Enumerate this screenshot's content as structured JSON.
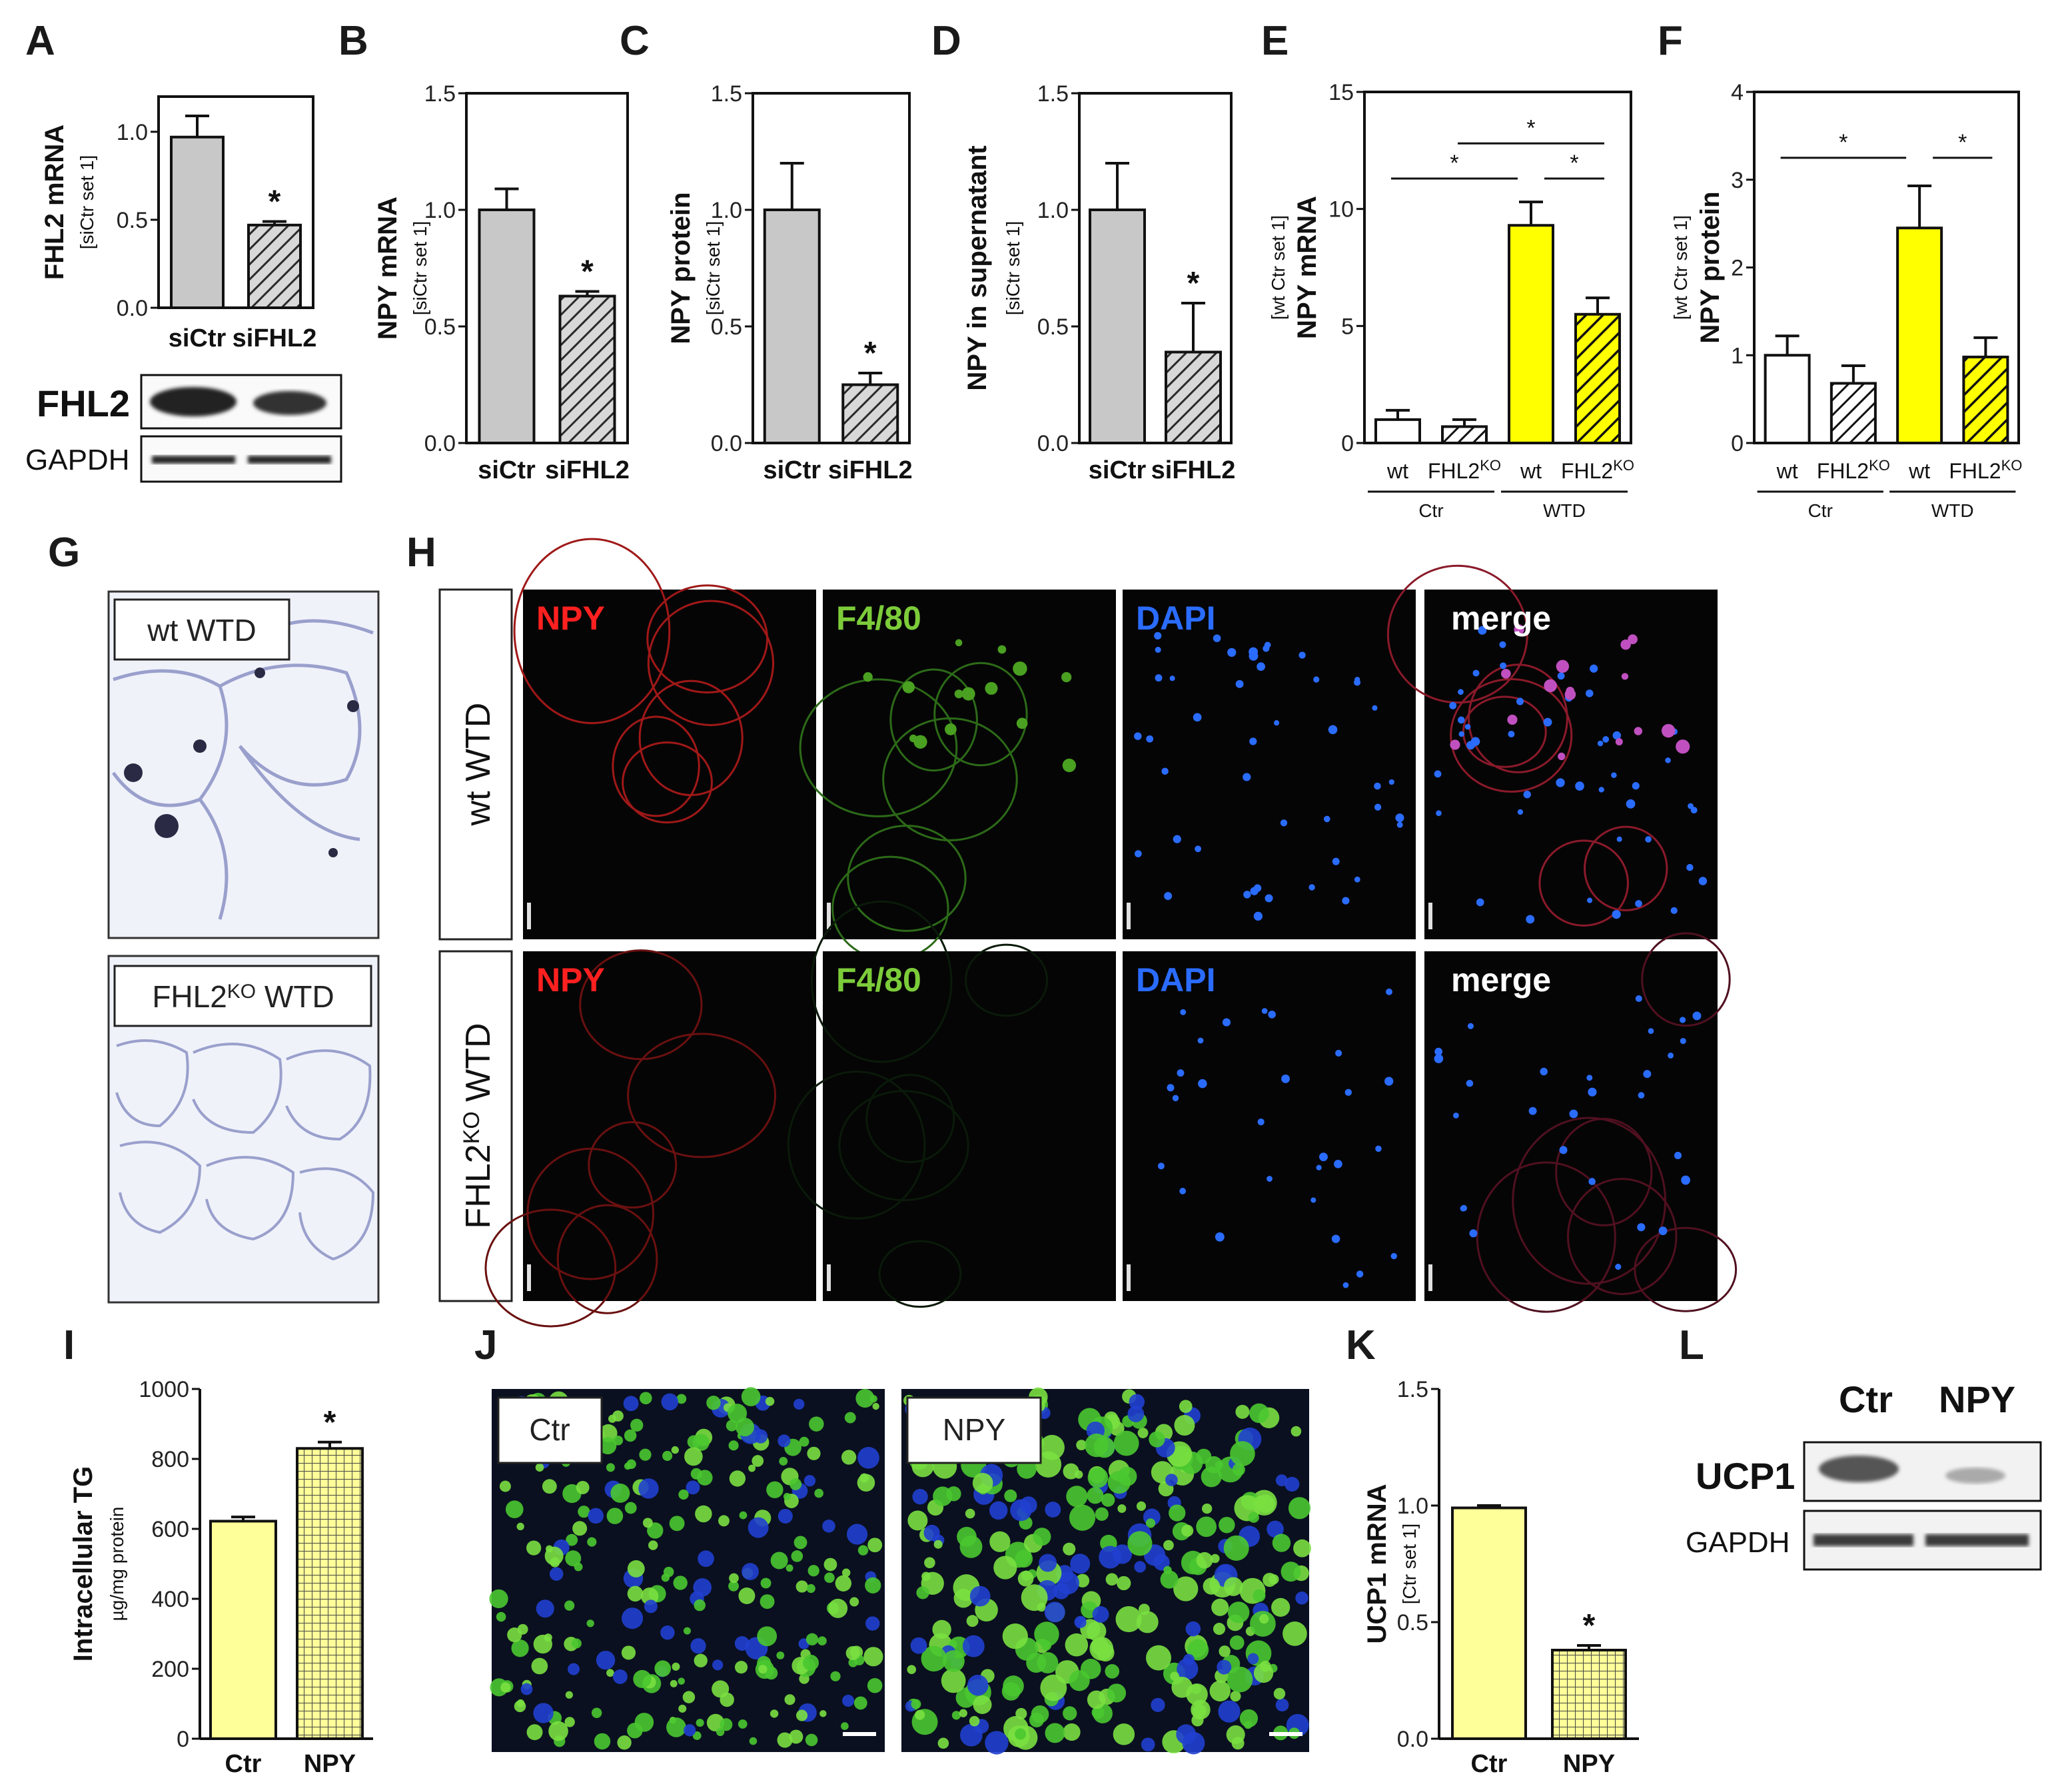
{
  "panel_letters": [
    "A",
    "B",
    "C",
    "D",
    "E",
    "F",
    "G",
    "H",
    "I",
    "J",
    "K",
    "L"
  ],
  "colors": {
    "gray_bar": "#c8c8c8",
    "yellow": "#ffff00",
    "light_yellow": "#ffff99",
    "white": "#ffffff",
    "npy_red": "#ff2020",
    "f480_green": "#7ccc3a",
    "dapi_blue": "#2a6cff",
    "merge_white": "#ffffff"
  },
  "chart_data": [
    {
      "panel": "A",
      "type": "bar",
      "ylabel": "FHL2 mRNA",
      "ysub": "[siCtr set 1]",
      "categories": [
        "siCtr",
        "siFHL2"
      ],
      "values": [
        0.97,
        0.47
      ],
      "errors": [
        0.12,
        0.02
      ],
      "patterns": [
        "solid",
        "hatch"
      ],
      "ylim": [
        0,
        1.2
      ],
      "yticks": [
        "0.0",
        "0.5",
        "1.0"
      ],
      "ytick_values": [
        0,
        0.5,
        1.0
      ],
      "sig": [
        {
          "label": "*",
          "bar": 1
        }
      ]
    },
    {
      "panel": "B",
      "type": "bar",
      "ylabel": "NPY mRNA",
      "ysub": "[siCtr set 1]",
      "categories": [
        "siCtr",
        "siFHL2"
      ],
      "values": [
        1.0,
        0.63
      ],
      "errors": [
        0.09,
        0.02
      ],
      "patterns": [
        "solid",
        "hatch"
      ],
      "ylim": [
        0,
        1.5
      ],
      "yticks": [
        "0.0",
        "0.5",
        "1.0",
        "1.5"
      ],
      "ytick_values": [
        0,
        0.5,
        1.0,
        1.5
      ],
      "sig": [
        {
          "label": "*",
          "bar": 1
        }
      ]
    },
    {
      "panel": "C",
      "type": "bar",
      "ylabel": "NPY protein",
      "ysub": "[siCtr set 1]",
      "categories": [
        "siCtr",
        "siFHL2"
      ],
      "values": [
        1.0,
        0.25
      ],
      "errors": [
        0.2,
        0.05
      ],
      "patterns": [
        "solid",
        "hatch"
      ],
      "ylim": [
        0,
        1.5
      ],
      "yticks": [
        "0.0",
        "0.5",
        "1.0",
        "1.5"
      ],
      "ytick_values": [
        0,
        0.5,
        1.0,
        1.5
      ],
      "sig": [
        {
          "label": "*",
          "bar": 1
        }
      ]
    },
    {
      "panel": "D",
      "type": "bar",
      "ylabel": "NPY in supernatant",
      "ysub": "[siCtr set 1]",
      "categories": [
        "siCtr",
        "siFHL2"
      ],
      "values": [
        1.0,
        0.39
      ],
      "errors": [
        0.2,
        0.21
      ],
      "patterns": [
        "solid",
        "hatch"
      ],
      "ylim": [
        0,
        1.5
      ],
      "yticks": [
        "0.0",
        "0.5",
        "1.0",
        "1.5"
      ],
      "ytick_values": [
        0,
        0.5,
        1.0,
        1.5
      ],
      "sig": [
        {
          "label": "*",
          "bar": 1
        }
      ]
    },
    {
      "panel": "E",
      "type": "bar",
      "ylabel": "NPY mRNA",
      "ysub": "[wt Ctr set 1]",
      "categories": [
        "wt",
        "FHL2",
        "wt",
        "FHL2"
      ],
      "values": [
        1.0,
        0.7,
        9.3,
        5.5
      ],
      "errors": [
        0.4,
        0.3,
        1.0,
        0.7
      ],
      "fills": [
        "white",
        "white",
        "yellow",
        "yellow"
      ],
      "patterns": [
        "solid",
        "hatch",
        "solid",
        "hatch"
      ],
      "groups": [
        "Ctr",
        "WTD"
      ],
      "ylim": [
        0,
        15
      ],
      "yticks": [
        "0",
        "5",
        "10",
        "15"
      ],
      "ytick_values": [
        0,
        5,
        10,
        15
      ],
      "brackets": [
        {
          "from": 0,
          "to": 2,
          "level": 11.3,
          "label": "*"
        },
        {
          "from": 2,
          "to": 3,
          "level": 11.3,
          "label": "*"
        },
        {
          "from": 1,
          "to": 3,
          "level": 12.8,
          "label": "*"
        }
      ]
    },
    {
      "panel": "F",
      "type": "bar",
      "ylabel": "NPY protein",
      "ysub": "[wt Ctr set 1]",
      "categories": [
        "wt",
        "FHL2",
        "wt",
        "FHL2"
      ],
      "values": [
        1.0,
        0.68,
        2.45,
        0.98
      ],
      "errors": [
        0.22,
        0.2,
        0.48,
        0.22
      ],
      "fills": [
        "white",
        "white",
        "yellow",
        "yellow"
      ],
      "patterns": [
        "solid",
        "hatch",
        "solid",
        "hatch"
      ],
      "groups": [
        "Ctr",
        "WTD"
      ],
      "ylim": [
        0,
        4
      ],
      "yticks": [
        "0",
        "1",
        "2",
        "3",
        "4"
      ],
      "ytick_values": [
        0,
        1,
        2,
        3,
        4
      ],
      "brackets": [
        {
          "from": 0,
          "to": 2,
          "level": 3.25,
          "label": "*"
        },
        {
          "from": 2,
          "to": 3,
          "level": 3.25,
          "label": "*"
        }
      ]
    },
    {
      "panel": "I",
      "type": "bar",
      "ylabel": "Intracellular TG",
      "ysub": "µg/mg protein",
      "categories": [
        "Ctr",
        "NPY"
      ],
      "values": [
        622,
        830
      ],
      "errors": [
        12,
        18
      ],
      "fills": [
        "light_yellow",
        "light_yellow"
      ],
      "patterns": [
        "solid",
        "grid"
      ],
      "ylim": [
        0,
        1000
      ],
      "yticks": [
        "0",
        "200",
        "400",
        "600",
        "800",
        "1000"
      ],
      "ytick_values": [
        0,
        200,
        400,
        600,
        800,
        1000
      ],
      "sig": [
        {
          "label": "*",
          "bar": 1
        }
      ]
    },
    {
      "panel": "K",
      "type": "bar",
      "ylabel": "UCP1 mRNA",
      "ysub": "[Ctr set 1]",
      "categories": [
        "Ctr",
        "NPY"
      ],
      "values": [
        0.99,
        0.38
      ],
      "errors": [
        0.01,
        0.02
      ],
      "fills": [
        "light_yellow",
        "light_yellow"
      ],
      "patterns": [
        "solid",
        "grid"
      ],
      "ylim": [
        0,
        1.5
      ],
      "yticks": [
        "0.0",
        "0.5",
        "1.0",
        "1.5"
      ],
      "ytick_values": [
        0,
        0.5,
        1.0,
        1.5
      ],
      "sig": [
        {
          "label": "*",
          "bar": 1
        }
      ]
    }
  ],
  "blots": {
    "A": {
      "rows": [
        "FHL2",
        "GAPDH"
      ]
    },
    "L": {
      "columns": [
        "Ctr",
        "NPY"
      ],
      "rows": [
        "UCP1",
        "GAPDH"
      ]
    }
  },
  "histology": {
    "G": {
      "labels": [
        "wt WTD",
        "FHL2KO WTD"
      ]
    },
    "H": {
      "rows": [
        "wt WTD",
        "FHL2KO WTD"
      ],
      "channels": [
        "NPY",
        "F4/80",
        "DAPI",
        "merge"
      ]
    },
    "J": {
      "labels": [
        "Ctr",
        "NPY"
      ]
    }
  },
  "superscript_ko": "KO",
  "fhl2_prefix": "FHL2"
}
